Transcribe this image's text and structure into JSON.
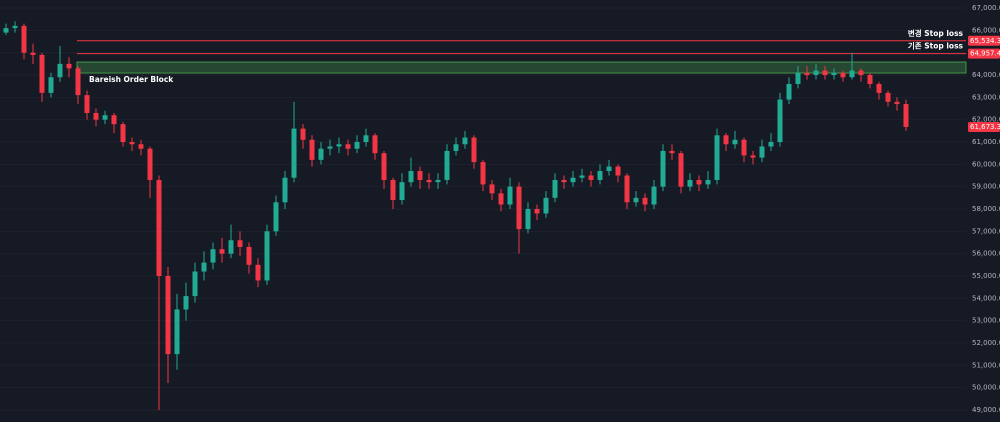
{
  "chart_data": {
    "type": "candlestick",
    "open": [
      65900,
      66100,
      66200,
      65000,
      64900,
      63200,
      63900,
      64500,
      64300,
      63100,
      62300,
      62000,
      62200,
      61800,
      61000,
      60900,
      60700,
      59300,
      55000,
      51500,
      53500,
      54100,
      55200,
      55600,
      56200,
      56000,
      56600,
      56300,
      55500,
      54800,
      57000,
      58300,
      59400,
      61600,
      61100,
      60200,
      60700,
      60800,
      60900,
      60700,
      61000,
      61300,
      60500,
      59300,
      58400,
      59200,
      59700,
      59300,
      59200,
      59300,
      60600,
      60900,
      61200,
      60100,
      59100,
      58700,
      58200,
      59000,
      57100,
      58000,
      57800,
      58500,
      59300,
      59200,
      59400,
      59500,
      59300,
      59700,
      59900,
      59500,
      58300,
      58500,
      58200,
      59000,
      60600,
      60500,
      59000,
      59300,
      59100,
      59300,
      61300,
      60900,
      61100,
      60400,
      60300,
      60800,
      61000,
      62900,
      63600,
      64100,
      64000,
      64200,
      64000,
      64100,
      63900,
      64200,
      64000,
      63600,
      63200,
      62800,
      62700
    ],
    "high": [
      66300,
      66400,
      66300,
      65400,
      65000,
      64100,
      65300,
      64800,
      64400,
      63300,
      62500,
      62400,
      62300,
      61900,
      61200,
      61100,
      60800,
      59500,
      55400,
      54200,
      54700,
      55600,
      56100,
      56500,
      56700,
      57300,
      57000,
      56500,
      55800,
      57300,
      58600,
      59700,
      62800,
      61800,
      61300,
      61000,
      61100,
      61200,
      61100,
      61300,
      61600,
      61400,
      60600,
      59400,
      59600,
      60300,
      59900,
      59600,
      59600,
      60900,
      61200,
      61500,
      61300,
      60200,
      59300,
      58900,
      59400,
      59200,
      58300,
      58200,
      58800,
      59600,
      59500,
      59700,
      59800,
      59700,
      60000,
      60200,
      60000,
      59600,
      58800,
      58700,
      59300,
      60900,
      60900,
      60600,
      59600,
      59500,
      59700,
      61600,
      61400,
      61500,
      61200,
      60600,
      61100,
      61400,
      63200,
      63900,
      64400,
      64400,
      64500,
      64400,
      64300,
      64200,
      65000,
      64300,
      64100,
      63700,
      63300,
      63000,
      62900
    ],
    "low": [
      65800,
      65900,
      64700,
      64500,
      62800,
      63000,
      63700,
      63900,
      62700,
      62000,
      61700,
      61800,
      61400,
      60800,
      60600,
      60400,
      58500,
      49000,
      50200,
      50800,
      53000,
      53800,
      54800,
      55300,
      55600,
      55800,
      55900,
      55100,
      54500,
      54600,
      56800,
      58000,
      59200,
      60700,
      59900,
      60000,
      60400,
      60500,
      60400,
      60500,
      60800,
      60200,
      58900,
      58000,
      58200,
      59000,
      58900,
      58900,
      58900,
      59100,
      60400,
      60700,
      59800,
      58800,
      58400,
      57900,
      58000,
      56000,
      56900,
      57500,
      57600,
      58300,
      58900,
      59000,
      59200,
      59000,
      59100,
      59500,
      59200,
      58000,
      58100,
      57900,
      58000,
      58800,
      60200,
      58700,
      58800,
      58800,
      58900,
      59100,
      60600,
      60700,
      60100,
      60000,
      60100,
      60600,
      60800,
      62700,
      63400,
      63800,
      63800,
      63800,
      63800,
      63700,
      63800,
      63700,
      63400,
      62900,
      62600,
      62400,
      61500
    ],
    "close": [
      66100,
      66200,
      65000,
      64900,
      63200,
      63900,
      64500,
      64300,
      63100,
      62300,
      62000,
      62200,
      61800,
      61000,
      60900,
      60700,
      59300,
      55000,
      51500,
      53500,
      54100,
      55200,
      55600,
      56200,
      56000,
      56600,
      56300,
      55500,
      54800,
      57000,
      58300,
      59400,
      61600,
      61100,
      60200,
      60700,
      60800,
      60900,
      60700,
      61000,
      61300,
      60500,
      59300,
      58400,
      59200,
      59700,
      59300,
      59200,
      59300,
      60600,
      60900,
      61200,
      60100,
      59100,
      58700,
      58200,
      59000,
      57100,
      58000,
      57800,
      58500,
      59300,
      59200,
      59400,
      59500,
      59300,
      59700,
      59900,
      59500,
      58300,
      58500,
      58200,
      59000,
      60600,
      60500,
      59000,
      59300,
      59100,
      59300,
      61300,
      60900,
      61100,
      60400,
      60300,
      60800,
      61000,
      62900,
      63600,
      64100,
      64000,
      64200,
      64000,
      64100,
      63900,
      64200,
      64000,
      63600,
      63200,
      62800,
      62700,
      61673.3
    ],
    "up_color": "#22ab94",
    "down_color": "#f23645",
    "ylim": [
      48460,
      67360
    ],
    "yticks": [
      {
        "value": 49000,
        "label": "49,000.0"
      },
      {
        "value": 50000,
        "label": "50,000.0"
      },
      {
        "value": 51000,
        "label": "51,000.0"
      },
      {
        "value": 52000,
        "label": "52,000.0"
      },
      {
        "value": 53000,
        "label": "53,000.0"
      },
      {
        "value": 54000,
        "label": "54,000.0"
      },
      {
        "value": 55000,
        "label": "55,000.0"
      },
      {
        "value": 56000,
        "label": "56,000.0"
      },
      {
        "value": 57000,
        "label": "57,000.0"
      },
      {
        "value": 58000,
        "label": "58,000.0"
      },
      {
        "value": 59000,
        "label": "59,000.0"
      },
      {
        "value": 60000,
        "label": "60,000.0"
      },
      {
        "value": 61000,
        "label": "61,000.0"
      },
      {
        "value": 62000,
        "label": "62,000.0"
      },
      {
        "value": 63000,
        "label": "63,000.0"
      },
      {
        "value": 64000,
        "label": "64,000.0"
      },
      {
        "value": 65000,
        "label": "65,000.0"
      },
      {
        "value": 66000,
        "label": "66,000.0"
      },
      {
        "value": 67000,
        "label": "67,000.0"
      }
    ],
    "grid": true,
    "levels": [
      {
        "name": "변경 Stop loss",
        "value": 65534.3,
        "label": "65,534.3",
        "color": "#f23645"
      },
      {
        "name": "기존 Stop loss",
        "value": 64957.4,
        "label": "64,957.4",
        "color": "#f23645"
      }
    ],
    "order_block": {
      "label": "Bareish Order Block",
      "top": 64582,
      "bottom": 64089,
      "color": "#4caf50"
    },
    "last_price": {
      "value": 61673.3,
      "label": "61,673.3",
      "color": "#f23645"
    }
  }
}
